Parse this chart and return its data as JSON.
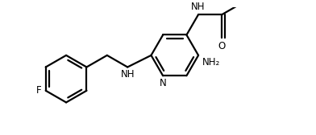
{
  "bg_color": "#ffffff",
  "line_color": "#000000",
  "line_width": 1.6,
  "font_size": 8.5,
  "fig_width": 3.92,
  "fig_height": 1.68,
  "dpi": 100,
  "xlim": [
    -0.5,
    8.5
  ],
  "ylim": [
    -0.3,
    3.6
  ]
}
